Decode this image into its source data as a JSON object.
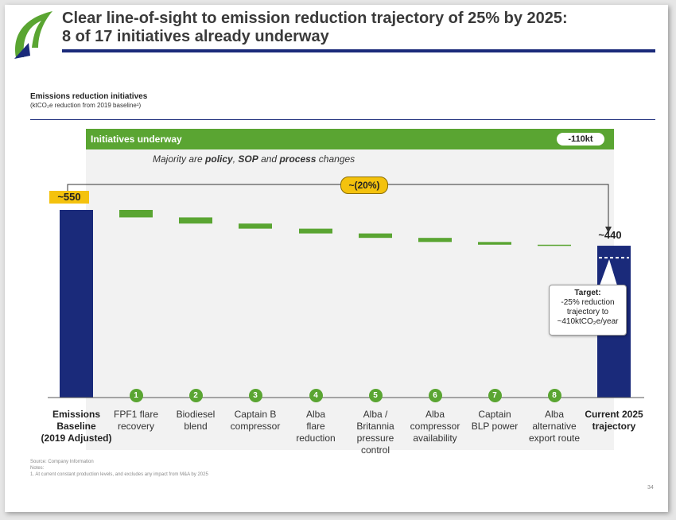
{
  "header": {
    "title_line1": "Clear line-of-sight to emission reduction trajectory of 25% by 2025:",
    "title_line2": "8 of 17 initiatives already underway"
  },
  "subheader": {
    "title": "Emissions reduction initiatives",
    "unit_note": "(ktCO₂e reduction from 2019 baseline¹)"
  },
  "panel": {
    "label": "Initiatives underway",
    "total_badge": "-110kt",
    "majority_prefix": "Majority are ",
    "majority_b1": "policy",
    "majority_mid1": ", ",
    "majority_b2": "SOP",
    "majority_mid2": " and ",
    "majority_b3": "process",
    "majority_suffix": " changes"
  },
  "annotations": {
    "baseline_value": "~550",
    "current_value": "~440",
    "reduction_pct": "~(20%)",
    "target_title": "Target:",
    "target_line1": "-25% reduction",
    "target_line2": "trajectory to",
    "target_line3": "~410ktCO₂e/year"
  },
  "colors": {
    "navy": "#1a2a7a",
    "green": "#5aa532",
    "yellow": "#f4c20d",
    "panel_bg": "#f2f2f2"
  },
  "chart_data": {
    "type": "bar",
    "subtype": "waterfall",
    "categories": [
      "Emissions Baseline (2019 Adjusted)",
      "FPF1 flare recovery",
      "Biodiesel blend",
      "Captain B compressor",
      "Alba flare reduction",
      "Alba / Britannia pressure control",
      "Alba compressor availability",
      "Captain BLP power",
      "Alba alternative export route",
      "Current 2025 trajectory"
    ],
    "labels": [
      [
        "Emissions",
        "Baseline",
        "(2019 Adjusted)"
      ],
      [
        "FPF1 flare",
        "recovery"
      ],
      [
        "Biodiesel",
        "blend"
      ],
      [
        "Captain B",
        "compressor"
      ],
      [
        "Alba",
        "flare",
        "reduction"
      ],
      [
        "Alba /",
        "Britannia",
        "pressure",
        "control"
      ],
      [
        "Alba",
        "compressor",
        "availability"
      ],
      [
        "Captain",
        "BLP power"
      ],
      [
        "Alba",
        "alternative",
        "export route"
      ],
      [
        "Current 2025",
        "trajectory"
      ]
    ],
    "numbers": [
      "1",
      "2",
      "3",
      "4",
      "5",
      "6",
      "7",
      "8"
    ],
    "baseline": 550,
    "deltas": [
      -22,
      -18,
      -15,
      -14,
      -13,
      -12,
      -8,
      -3
    ],
    "final": 445,
    "target": 410
  },
  "footer": {
    "source": "Source: Company Information",
    "notes": "Notes:",
    "note1": "1. At current constant production levels, and excludes any impact from M&A by 2025",
    "page": "34"
  }
}
